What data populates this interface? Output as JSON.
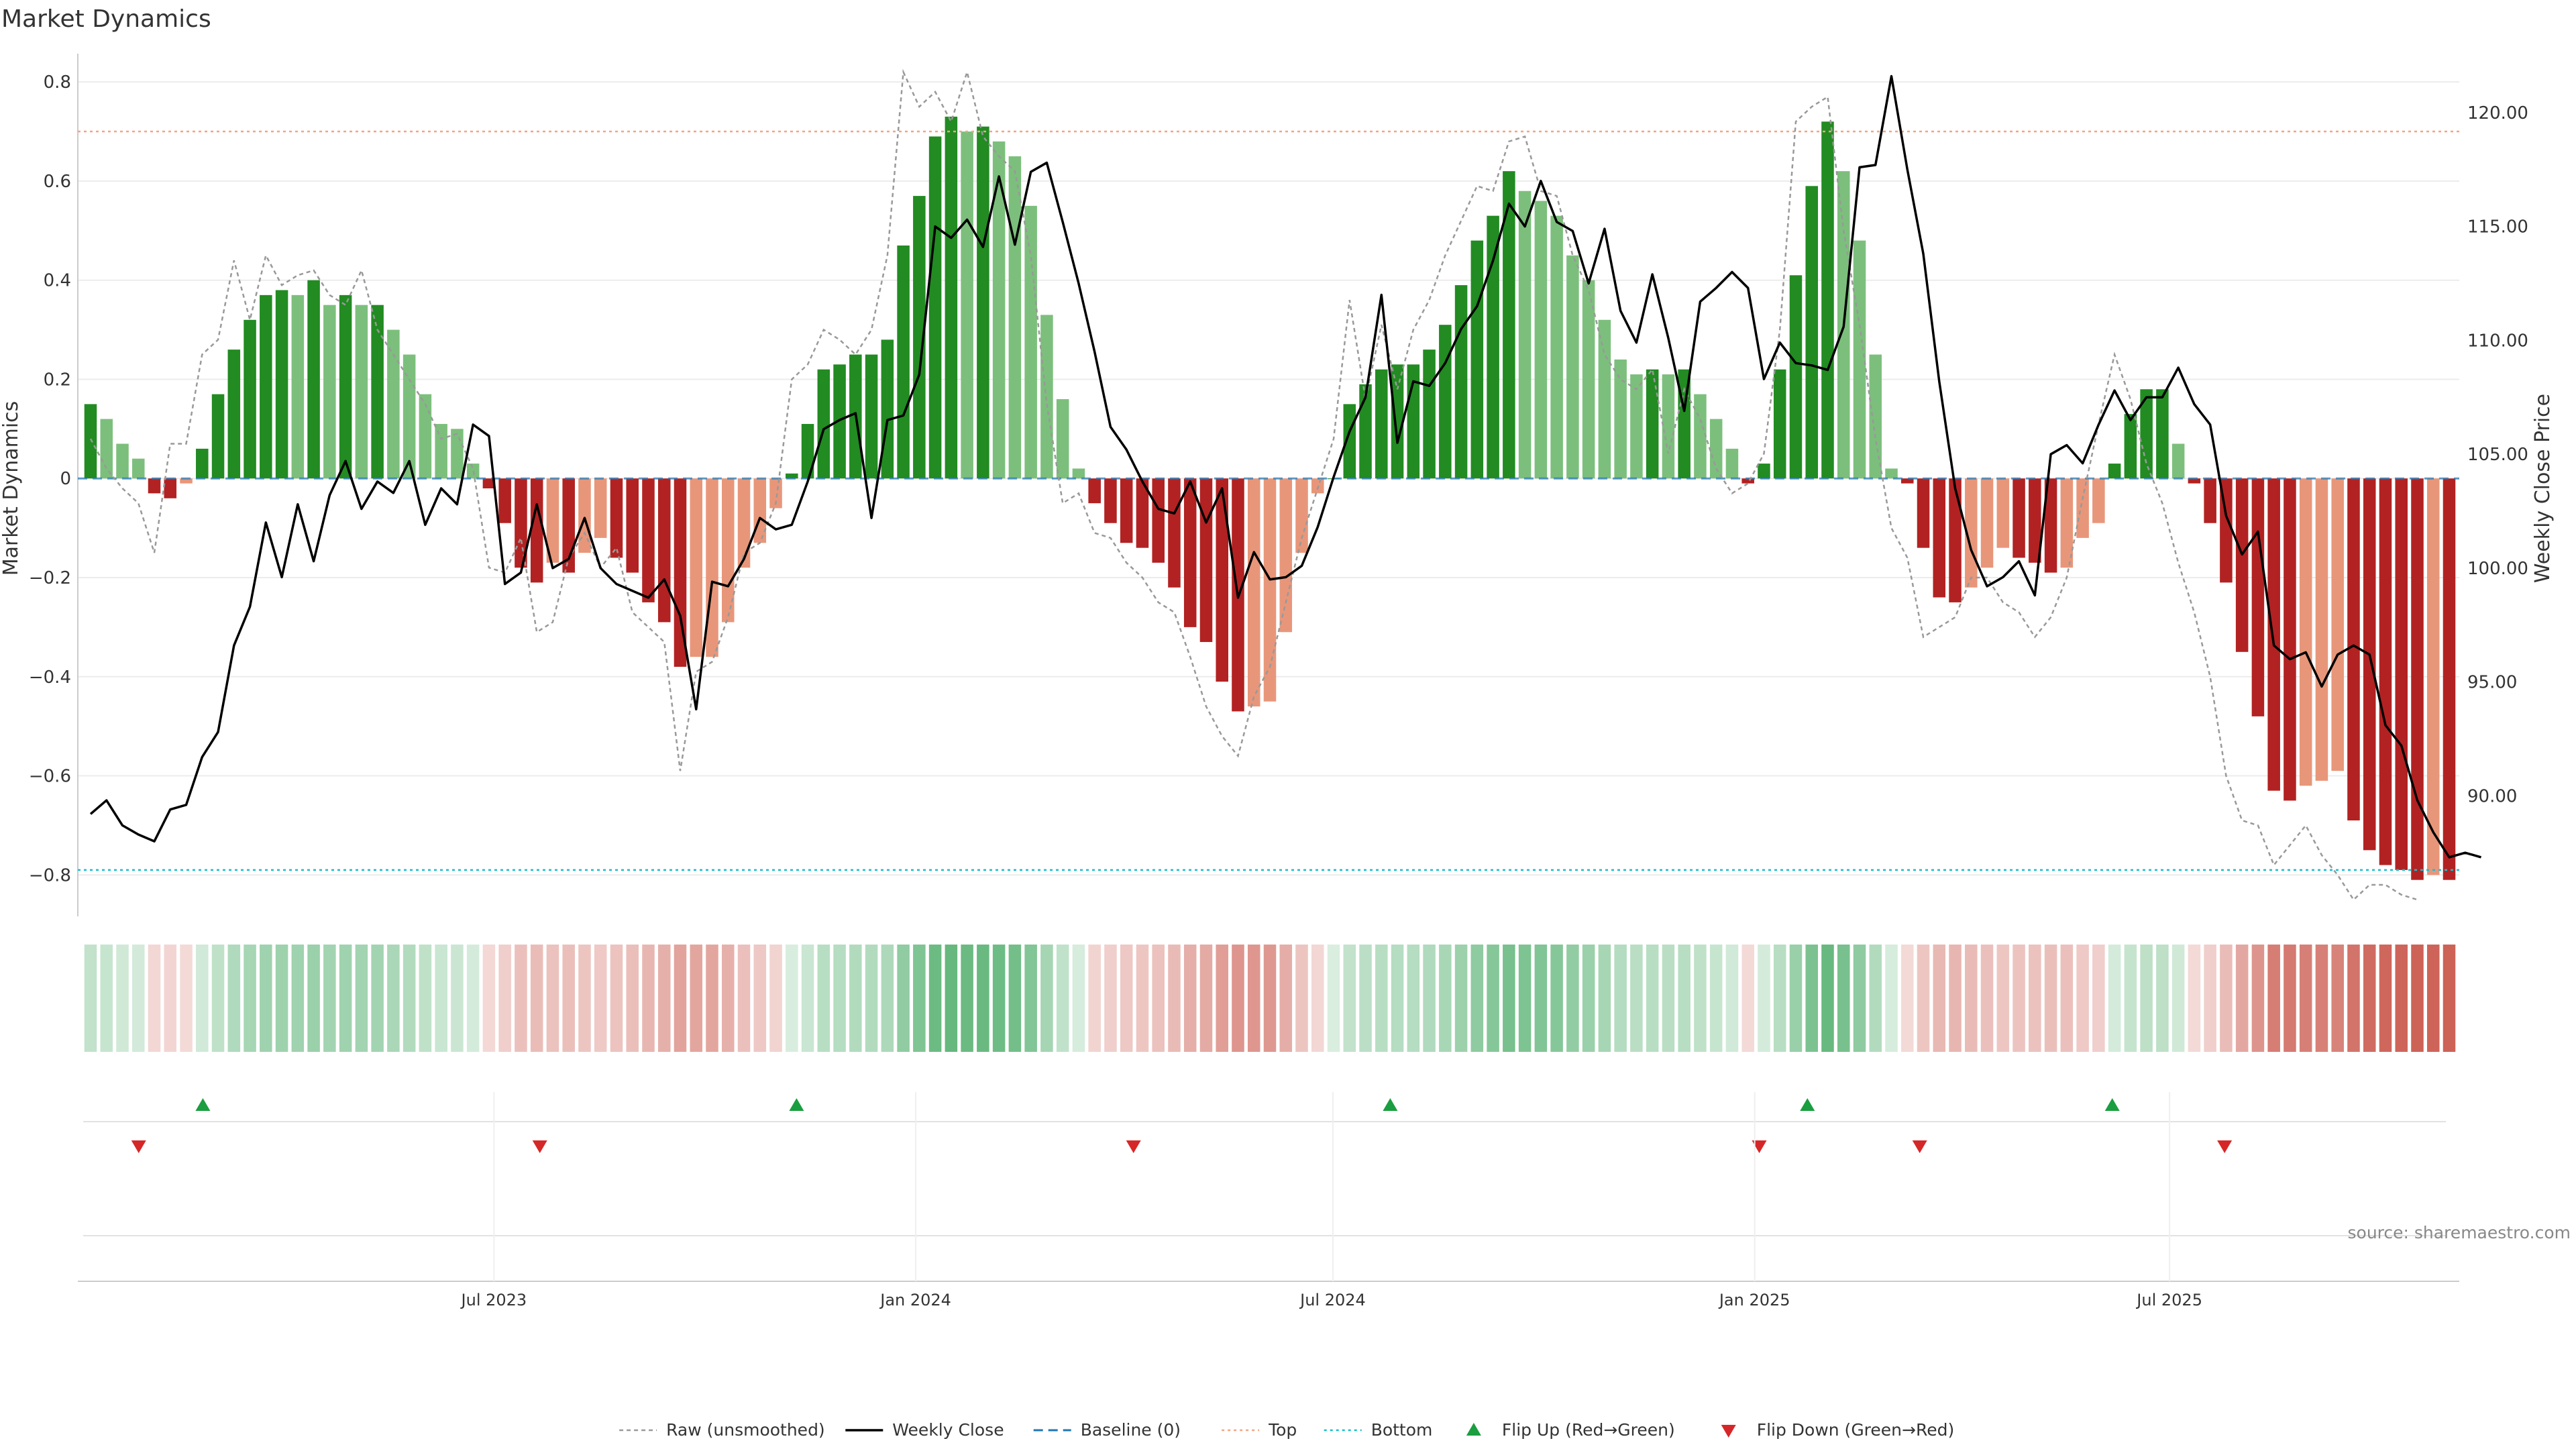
{
  "title": "Market Dynamics",
  "source": "source: sharemaestro.com",
  "colors": {
    "strong_pos": "#228B22",
    "weak_pos": "#7CBF7C",
    "strong_neg": "#B22222",
    "weak_neg": "#E8967A",
    "raw": "#999999",
    "close": "#000000",
    "baseline": "#1F77B4",
    "top": "#F4A582",
    "bottom": "#17BECF",
    "flip_up": "#1A9E3F",
    "flip_down": "#D62728"
  },
  "chart_data": {
    "type": "bar",
    "x_axis": {
      "type": "date",
      "start": "2023-01-06",
      "end": "2025-10-31",
      "ticks": [
        "2023-07-01",
        "2024-01-01",
        "2024-07-01",
        "2025-01-01",
        "2025-07-01"
      ],
      "tick_labels": [
        "Jul 2023",
        "Jan 2024",
        "Jul 2024",
        "Jan 2025",
        "Jul 2025"
      ]
    },
    "y_left": {
      "label": "Market Dynamics",
      "ticks": [
        -0.8,
        -0.6,
        -0.4,
        -0.2,
        0,
        0.2,
        0.4,
        0.6,
        0.8
      ],
      "tick_labels": [
        "−0.8",
        "−0.6",
        "−0.4",
        "−0.2",
        "0",
        "0.2",
        "0.4",
        "0.6",
        "0.8"
      ],
      "range": [
        -0.87,
        0.83
      ]
    },
    "y_right": {
      "label": "Weekly Close Price",
      "ticks": [
        90,
        95,
        100,
        105,
        110,
        115,
        120
      ],
      "tick_labels": [
        "90.00",
        "95.00",
        "100.00",
        "105.00",
        "110.00",
        "115.00",
        "120.00"
      ],
      "range": [
        85,
        122
      ]
    },
    "reference_lines": {
      "baseline": 0,
      "top": 0.7,
      "bottom": -0.79
    },
    "smoothed": [
      0.15,
      0.12,
      0.07,
      0.04,
      -0.03,
      -0.04,
      -0.01,
      0.06,
      0.17,
      0.26,
      0.32,
      0.37,
      0.38,
      0.37,
      0.4,
      0.35,
      0.37,
      0.35,
      0.35,
      0.3,
      0.25,
      0.17,
      0.11,
      0.1,
      0.03,
      -0.02,
      -0.09,
      -0.18,
      -0.21,
      -0.17,
      -0.19,
      -0.15,
      -0.12,
      -0.16,
      -0.19,
      -0.25,
      -0.29,
      -0.38,
      -0.36,
      -0.36,
      -0.29,
      -0.18,
      -0.13,
      -0.06,
      0.01,
      0.11,
      0.22,
      0.23,
      0.25,
      0.25,
      0.28,
      0.47,
      0.57,
      0.69,
      0.73,
      0.7,
      0.71,
      0.68,
      0.65,
      0.55,
      0.33,
      0.16,
      0.02,
      -0.05,
      -0.09,
      -0.13,
      -0.14,
      -0.17,
      -0.22,
      -0.3,
      -0.33,
      -0.41,
      -0.47,
      -0.46,
      -0.45,
      -0.31,
      -0.15,
      -0.03,
      0.0,
      0.15,
      0.19,
      0.22,
      0.23,
      0.23,
      0.26,
      0.31,
      0.39,
      0.48,
      0.53,
      0.62,
      0.58,
      0.56,
      0.53,
      0.45,
      0.4,
      0.32,
      0.24,
      0.21,
      0.22,
      0.21,
      0.22,
      0.17,
      0.12,
      0.06,
      -0.01,
      0.03,
      0.22,
      0.41,
      0.59,
      0.72,
      0.62,
      0.48,
      0.25,
      0.02,
      -0.01,
      -0.14,
      -0.24,
      -0.25,
      -0.22,
      -0.18,
      -0.14,
      -0.16,
      -0.17,
      -0.19,
      -0.18,
      -0.12,
      -0.09,
      0.03,
      0.13,
      0.18,
      0.18,
      0.07,
      -0.01,
      -0.09,
      -0.21,
      -0.35,
      -0.48,
      -0.63,
      -0.65,
      -0.62,
      -0.61,
      -0.59,
      -0.69,
      -0.75,
      -0.78,
      -0.79,
      -0.81,
      -0.8,
      -0.81
    ],
    "raw": [
      0.08,
      0.02,
      -0.02,
      -0.05,
      -0.15,
      0.07,
      0.07,
      0.25,
      0.28,
      0.44,
      0.32,
      0.45,
      0.39,
      0.41,
      0.42,
      0.37,
      0.35,
      0.42,
      0.3,
      0.25,
      0.2,
      0.15,
      0.08,
      0.09,
      0.02,
      -0.18,
      -0.19,
      -0.12,
      -0.31,
      -0.29,
      -0.16,
      -0.11,
      -0.18,
      -0.14,
      -0.27,
      -0.3,
      -0.33,
      -0.59,
      -0.39,
      -0.37,
      -0.28,
      -0.15,
      -0.13,
      -0.05,
      0.2,
      0.23,
      0.3,
      0.28,
      0.25,
      0.3,
      0.45,
      0.82,
      0.75,
      0.78,
      0.72,
      0.82,
      0.69,
      0.65,
      0.62,
      0.45,
      0.15,
      -0.05,
      -0.03,
      -0.11,
      -0.12,
      -0.17,
      -0.2,
      -0.25,
      -0.27,
      -0.36,
      -0.46,
      -0.52,
      -0.56,
      -0.44,
      -0.38,
      -0.25,
      -0.12,
      -0.02,
      0.08,
      0.36,
      0.16,
      0.31,
      0.18,
      0.3,
      0.36,
      0.45,
      0.52,
      0.59,
      0.58,
      0.68,
      0.69,
      0.58,
      0.57,
      0.45,
      0.38,
      0.25,
      0.2,
      0.18,
      0.22,
      0.05,
      0.18,
      0.12,
      0.02,
      -0.03,
      -0.01,
      0.05,
      0.3,
      0.72,
      0.75,
      0.77,
      0.5,
      0.31,
      0.08,
      -0.1,
      -0.16,
      -0.32,
      -0.3,
      -0.28,
      -0.2,
      -0.2,
      -0.25,
      -0.27,
      -0.32,
      -0.28,
      -0.2,
      -0.04,
      0.11,
      0.25,
      0.16,
      0.03,
      -0.05,
      -0.17,
      -0.27,
      -0.4,
      -0.6,
      -0.69,
      -0.7,
      -0.78,
      -0.74,
      -0.7,
      -0.76,
      -0.8,
      -0.85,
      -0.82,
      -0.82,
      -0.84,
      -0.85
    ],
    "weekly_close": [
      89.2,
      89.8,
      88.7,
      88.3,
      88.0,
      89.4,
      89.6,
      91.7,
      92.8,
      96.6,
      98.3,
      102.0,
      99.6,
      102.8,
      100.3,
      103.2,
      104.7,
      102.6,
      103.8,
      103.3,
      104.7,
      101.9,
      103.5,
      102.8,
      106.3,
      105.8,
      99.3,
      99.8,
      102.8,
      100.0,
      100.4,
      102.2,
      100.0,
      99.3,
      99.0,
      98.7,
      99.5,
      97.9,
      93.8,
      99.4,
      99.2,
      100.4,
      102.2,
      101.7,
      101.9,
      103.8,
      106.1,
      106.5,
      106.8,
      102.2,
      106.5,
      106.7,
      108.5,
      115.0,
      114.5,
      115.3,
      114.1,
      117.2,
      114.2,
      117.4,
      117.8,
      115.2,
      112.5,
      109.5,
      106.2,
      105.2,
      103.8,
      102.6,
      102.4,
      103.8,
      102.0,
      103.5,
      98.7,
      100.7,
      99.5,
      99.6,
      100.1,
      101.8,
      104.0,
      106.0,
      107.5,
      112.0,
      105.5,
      108.2,
      108.0,
      109.0,
      110.5,
      111.5,
      113.5,
      116.0,
      115.0,
      117.0,
      115.2,
      114.8,
      112.5,
      114.9,
      111.3,
      109.9,
      112.9,
      110.1,
      106.9,
      111.7,
      112.3,
      113.0,
      112.3,
      108.3,
      109.9,
      109.0,
      108.9,
      108.7,
      110.6,
      117.6,
      117.7,
      121.6,
      117.5,
      113.8,
      108.2,
      103.5,
      100.8,
      99.2,
      99.6,
      100.3,
      98.8,
      105.0,
      105.4,
      104.6,
      106.3,
      107.8,
      106.5,
      107.5,
      107.5,
      108.8,
      107.2,
      106.3,
      102.3,
      100.6,
      101.6,
      96.6,
      96.0,
      96.3,
      94.8,
      96.2,
      96.6,
      96.2,
      93.1,
      92.2,
      89.8,
      88.4,
      87.3,
      87.5,
      87.3
    ],
    "flips_up": [
      "2023-02-24",
      "2023-11-10",
      "2024-07-26",
      "2025-01-24",
      "2025-06-06"
    ],
    "flips_down": [
      "2023-01-27",
      "2023-07-21",
      "2024-04-05",
      "2025-01-03",
      "2025-03-14",
      "2025-07-25"
    ],
    "legend": {
      "position": "bottom-center",
      "entries": [
        {
          "key": "raw",
          "label": "Raw (unsmoothed)"
        },
        {
          "key": "close",
          "label": "Weekly Close"
        },
        {
          "key": "baseline",
          "label": "Baseline (0)"
        },
        {
          "key": "top",
          "label": "Top"
        },
        {
          "key": "bottom",
          "label": "Bottom"
        },
        {
          "key": "flip_up",
          "label": "Flip Up (Red→Green)"
        },
        {
          "key": "flip_down",
          "label": "Flip Down (Green→Red)"
        }
      ]
    }
  }
}
